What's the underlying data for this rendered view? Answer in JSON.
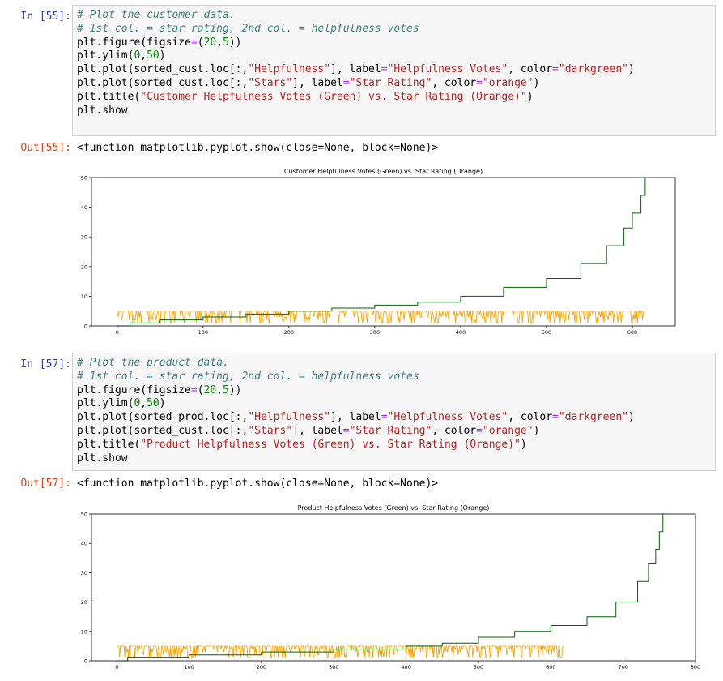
{
  "cells": [
    {
      "in_prompt": "In [55]:",
      "code": [
        [
          [
            "# Plot the customer data.",
            "comment"
          ]
        ],
        [
          [
            "# 1st col. = star rating, 2nd col. = helpfulness votes",
            "comment"
          ]
        ],
        [
          [
            "plt.figure(figsize",
            ""
          ],
          [
            "=",
            "op"
          ],
          [
            "(",
            ""
          ],
          [
            "20",
            "num"
          ],
          [
            ",",
            ""
          ],
          [
            "5",
            "num"
          ],
          [
            "))",
            ""
          ]
        ],
        [
          [
            "plt.ylim(",
            ""
          ],
          [
            "0",
            "num"
          ],
          [
            ",",
            ""
          ],
          [
            "50",
            "num"
          ],
          [
            ")",
            ""
          ]
        ],
        [
          [
            "plt.plot(sorted_cust.loc[:,",
            ""
          ],
          [
            "\"Helpfulness\"",
            "string"
          ],
          [
            "], label",
            ""
          ],
          [
            "=",
            "op"
          ],
          [
            "\"Helpfulness Votes\"",
            "string"
          ],
          [
            ", color",
            ""
          ],
          [
            "=",
            "op"
          ],
          [
            "\"darkgreen\"",
            "string"
          ],
          [
            ")",
            ""
          ]
        ],
        [
          [
            "plt.plot(sorted_cust.loc[:,",
            ""
          ],
          [
            "\"Stars\"",
            "string"
          ],
          [
            "], label",
            ""
          ],
          [
            "=",
            "op"
          ],
          [
            "\"Star Rating\"",
            "string"
          ],
          [
            ", color",
            ""
          ],
          [
            "=",
            "op"
          ],
          [
            "\"orange\"",
            "string"
          ],
          [
            ")",
            ""
          ]
        ],
        [
          [
            "plt.title(",
            ""
          ],
          [
            "\"Customer Helpfulness Votes (Green) vs. Star Rating (Orange)\"",
            "string"
          ],
          [
            ")",
            ""
          ]
        ],
        [
          [
            "plt.show",
            ""
          ]
        ]
      ],
      "out_prompt": "Out[55]:",
      "output_text": "<function matplotlib.pyplot.show(close=None, block=None)>"
    },
    {
      "in_prompt": "In [57]:",
      "code": [
        [
          [
            "# Plot the product data.",
            "comment"
          ]
        ],
        [
          [
            "# 1st col. = star rating, 2nd col. = helpfulness votes",
            "comment"
          ]
        ],
        [
          [
            "plt.figure(figsize",
            ""
          ],
          [
            "=",
            "op"
          ],
          [
            "(",
            ""
          ],
          [
            "20",
            "num"
          ],
          [
            ",",
            ""
          ],
          [
            "5",
            "num"
          ],
          [
            "))",
            ""
          ]
        ],
        [
          [
            "plt.ylim(",
            ""
          ],
          [
            "0",
            "num"
          ],
          [
            ",",
            ""
          ],
          [
            "50",
            "num"
          ],
          [
            ")",
            ""
          ]
        ],
        [
          [
            "plt.plot(sorted_prod.loc[:,",
            ""
          ],
          [
            "\"Helpfulness\"",
            "string"
          ],
          [
            "], label",
            ""
          ],
          [
            "=",
            "op"
          ],
          [
            "\"Helpfulness Votes\"",
            "string"
          ],
          [
            ", color",
            ""
          ],
          [
            "=",
            "op"
          ],
          [
            "\"darkgreen\"",
            "string"
          ],
          [
            ")",
            ""
          ]
        ],
        [
          [
            "plt.plot(sorted_cust.loc[:,",
            ""
          ],
          [
            "\"Stars\"",
            "string"
          ],
          [
            "], label",
            ""
          ],
          [
            "=",
            "op"
          ],
          [
            "\"Star Rating\"",
            "string"
          ],
          [
            ", color",
            ""
          ],
          [
            "=",
            "op"
          ],
          [
            "\"orange\"",
            "string"
          ],
          [
            ")",
            ""
          ]
        ],
        [
          [
            "plt.title(",
            ""
          ],
          [
            "\"Product Helpfulness Votes (Green) vs. Star Rating (Orange)\"",
            "string"
          ],
          [
            ")",
            ""
          ]
        ],
        [
          [
            "plt.show",
            ""
          ]
        ]
      ],
      "out_prompt": "Out[57]:",
      "output_text": "<function matplotlib.pyplot.show(close=None, block=None)>"
    }
  ],
  "colors": {
    "green_series": "#006400",
    "orange_series": "#ffa500",
    "in_prompt": "#303f9f",
    "out_prompt": "#d84315"
  },
  "chart_data": [
    {
      "type": "line",
      "title": "Customer Helpfulness Votes (Green) vs. Star Rating (Orange)",
      "xlabel": "",
      "ylabel": "",
      "xlim": [
        -30,
        650
      ],
      "ylim": [
        0,
        50
      ],
      "xticks": [
        0,
        100,
        200,
        300,
        400,
        500,
        600
      ],
      "yticks": [
        0,
        10,
        20,
        30,
        40,
        50
      ],
      "grid": false,
      "series": [
        {
          "color": "darkgreen",
          "x": [
            0,
            15,
            50,
            100,
            150,
            200,
            250,
            300,
            350,
            400,
            450,
            500,
            540,
            570,
            590,
            600,
            610,
            615
          ],
          "y": [
            0,
            1,
            2,
            3,
            4,
            5,
            6,
            7,
            8,
            10,
            13,
            16,
            21,
            27,
            33,
            38,
            44,
            50
          ]
        },
        {
          "color": "orange",
          "x_range": [
            0,
            617
          ],
          "values_range": [
            1,
            5
          ]
        }
      ]
    },
    {
      "type": "line",
      "title": "Product Helpfulness Votes (Green) vs. Star Rating (Orange)",
      "xlabel": "",
      "ylabel": "",
      "xlim": [
        -35,
        800
      ],
      "ylim": [
        0,
        50
      ],
      "xticks": [
        0,
        100,
        200,
        300,
        400,
        500,
        600,
        700,
        800
      ],
      "yticks": [
        0,
        10,
        20,
        30,
        40,
        50
      ],
      "grid": false,
      "series": [
        {
          "color": "darkgreen",
          "x": [
            0,
            15,
            100,
            200,
            300,
            400,
            450,
            500,
            550,
            600,
            650,
            690,
            720,
            735,
            745,
            750,
            755
          ],
          "y": [
            0,
            1,
            2,
            3,
            4,
            5,
            6,
            8,
            10,
            12,
            15,
            20,
            27,
            33,
            38,
            44,
            50
          ]
        },
        {
          "color": "orange",
          "x_range": [
            0,
            617
          ],
          "values_range": [
            1,
            5
          ]
        }
      ]
    }
  ]
}
